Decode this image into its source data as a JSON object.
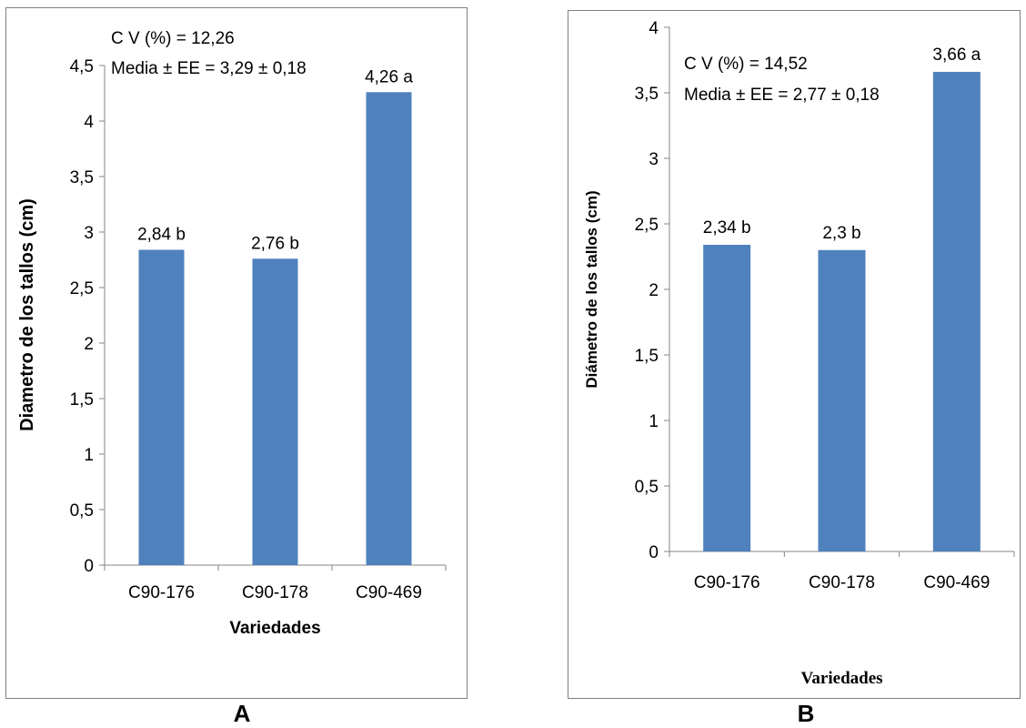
{
  "charts": [
    {
      "panel_label": "A",
      "chart_data": {
        "type": "bar",
        "categories": [
          "C90-176",
          "C90-178",
          "C90-469"
        ],
        "values": [
          2.84,
          2.76,
          4.26
        ],
        "data_labels": [
          "2,84 b",
          "2,76 b",
          "4,26 a"
        ],
        "ylabel": "Diametro de los tallos (cm)",
        "xlabel": "Variedades",
        "ylim": [
          0,
          4.5
        ],
        "yticks": [
          0,
          0.5,
          1,
          1.5,
          2,
          2.5,
          3,
          3.5,
          4,
          4.5
        ],
        "ytick_labels": [
          "0",
          "0,5",
          "1",
          "1,5",
          "2",
          "2,5",
          "3",
          "3,5",
          "4",
          "4,5"
        ],
        "annotations": [
          "C V (%) = 12,26",
          "Media ± EE = 3,29 ± 0,18"
        ],
        "bar_color": "#4f81bd",
        "grid": false,
        "legend": "none"
      }
    },
    {
      "panel_label": "B",
      "chart_data": {
        "type": "bar",
        "categories": [
          "C90-176",
          "C90-178",
          "C90-469"
        ],
        "values": [
          2.34,
          2.3,
          3.66
        ],
        "data_labels": [
          "2,34 b",
          "2,3 b",
          "3,66 a"
        ],
        "ylabel": "Diámetro de los tallos (cm)",
        "xlabel": "Variedades",
        "ylim": [
          0,
          4
        ],
        "yticks": [
          0,
          0.5,
          1,
          1.5,
          2,
          2.5,
          3,
          3.5,
          4
        ],
        "ytick_labels": [
          "0",
          "0,5",
          "1",
          "1,5",
          "2",
          "2,5",
          "3",
          "3,5",
          "4"
        ],
        "annotations": [
          "C V (%) = 14,52",
          "Media ± EE = 2,77 ± 0,18"
        ],
        "bar_color": "#4f81bd",
        "grid": false,
        "legend": "none"
      }
    }
  ]
}
